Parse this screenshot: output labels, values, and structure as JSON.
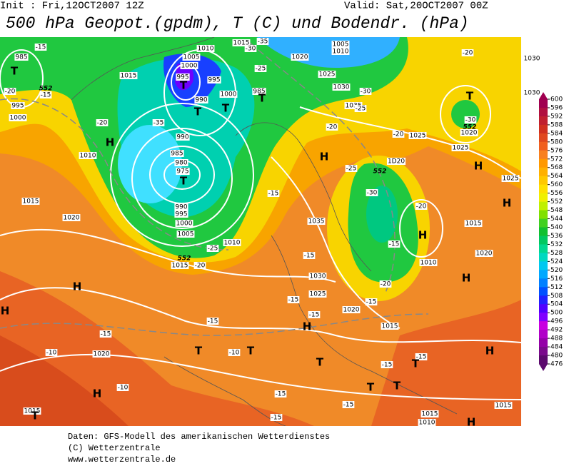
{
  "header": {
    "init": "Init : Fri,12OCT2007 12Z",
    "valid": "Valid: Sat,20OCT2007 00Z",
    "title": "500 hPa Geopot.(gpdm), T (C) und Bodendr. (hPa)"
  },
  "map": {
    "isobar_labels": [
      "985",
      "995",
      "1000",
      "1010",
      "1005",
      "1000",
      "995",
      "1015",
      "995",
      "990",
      "1000",
      "985",
      "1015",
      "1005",
      "1010",
      "1020",
      "1025",
      "1030",
      "1035",
      "1030",
      "1030",
      "1020",
      "1025",
      "1025",
      "990",
      "985",
      "980",
      "975",
      "990",
      "995",
      "1000",
      "1005",
      "1010",
      "1015",
      "1010",
      "1015",
      "1020",
      "1D20",
      "1035",
      "1030",
      "1025",
      "1020",
      "1015",
      "1010",
      "1020",
      "1015",
      "1025",
      "1020",
      "1015",
      "1015",
      "1015",
      "1010"
    ],
    "temperature_labels": [
      "-15",
      "-20",
      "-15",
      "-20",
      "-30",
      "-35",
      "-25",
      "-35",
      "-30",
      "-25",
      "-20",
      "-20",
      "-20",
      "-30",
      "-25",
      "-30",
      "-20",
      "-25",
      "-20",
      "-15",
      "-15",
      "-15",
      "-15",
      "-15",
      "-15",
      "-15",
      "-10",
      "-10",
      "-15",
      "-15",
      "-10",
      "-15",
      "-15",
      "-15",
      "-15",
      "-20"
    ],
    "height_labels": [
      "552",
      "552",
      "552",
      "552"
    ],
    "pressure_centers": [
      "T",
      "T",
      "T",
      "T",
      "T",
      "T",
      "T",
      "H",
      "H",
      "H",
      "H",
      "H",
      "H",
      "H",
      "H",
      "H",
      "H",
      "T",
      "T",
      "T",
      "T",
      "T",
      "T",
      "H",
      "T",
      "H"
    ]
  },
  "legend": {
    "values": [
      600,
      596,
      592,
      588,
      584,
      580,
      576,
      572,
      568,
      564,
      560,
      556,
      552,
      548,
      544,
      540,
      536,
      532,
      528,
      524,
      520,
      516,
      512,
      508,
      504,
      500,
      496,
      492,
      488,
      484,
      480,
      476
    ],
    "colors": [
      "#a00050",
      "#b01040",
      "#c02030",
      "#d03020",
      "#e04820",
      "#f06020",
      "#f88020",
      "#ff9800",
      "#ffb000",
      "#ffc800",
      "#ffe000",
      "#f0f000",
      "#c0f000",
      "#80e000",
      "#40d020",
      "#10c030",
      "#00c860",
      "#00d890",
      "#00d8c0",
      "#00c8f0",
      "#00a8ff",
      "#0080ff",
      "#0050ff",
      "#2020ff",
      "#5000ff",
      "#8000ff",
      "#c800e0",
      "#b000c8",
      "#9400a8",
      "#7a0a8c",
      "#5c0a6e"
    ]
  },
  "footer": {
    "lines": [
      "Daten: GFS-Modell des amerikanischen Wetterdienstes",
      "(C) Wetterzentrale",
      "www.wetterzentrale.de"
    ]
  }
}
